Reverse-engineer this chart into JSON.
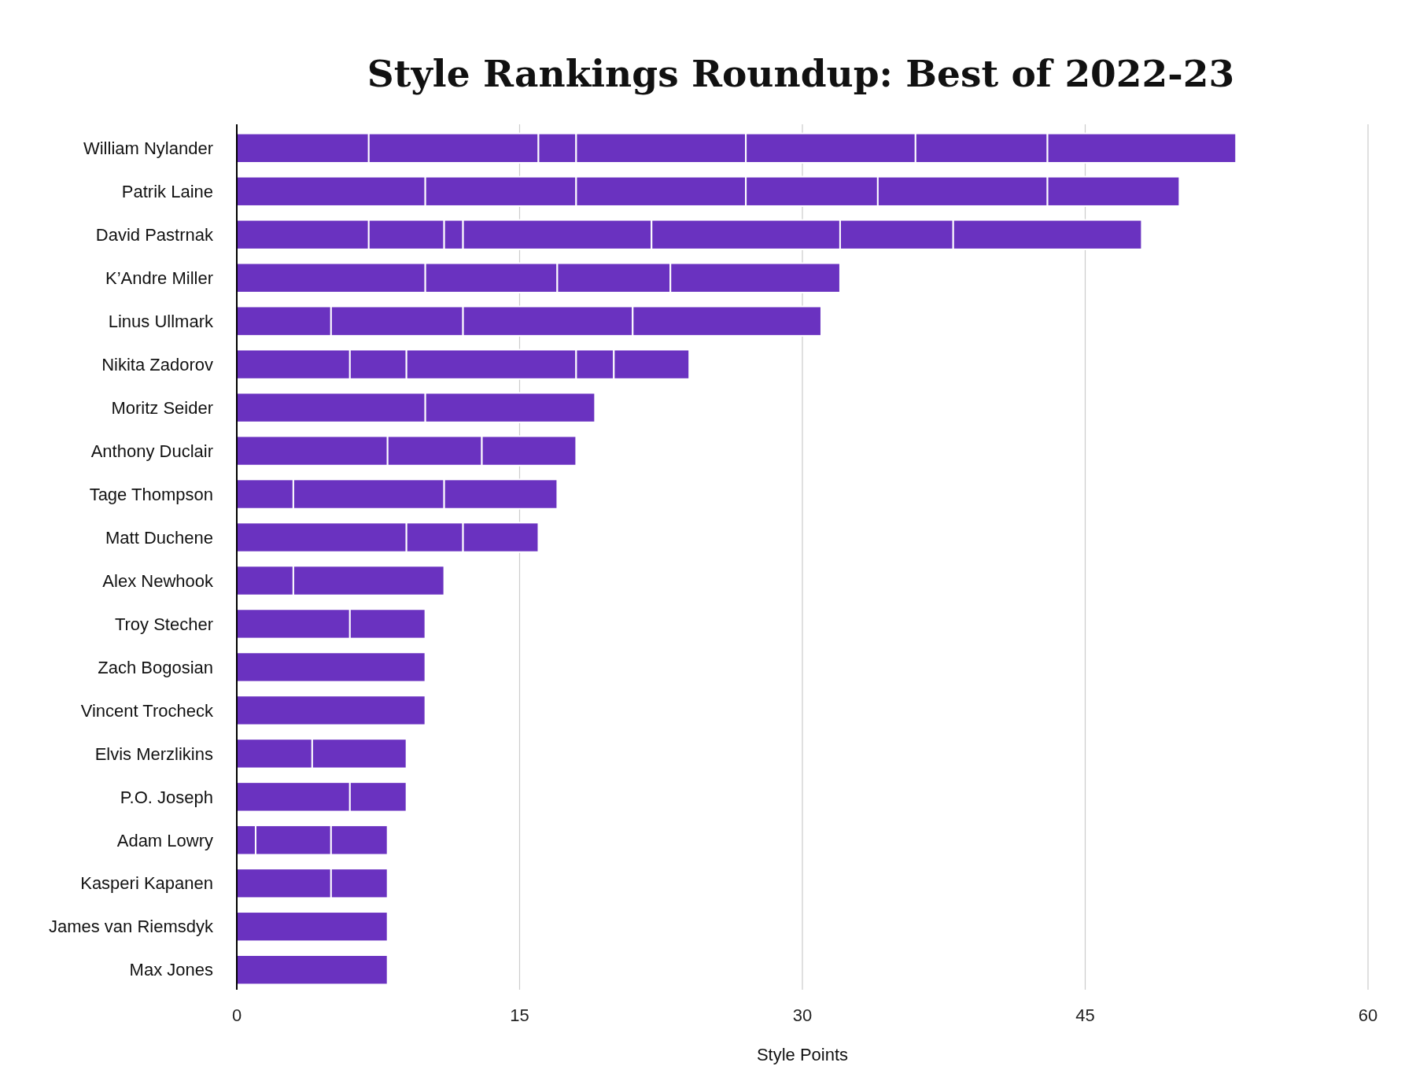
{
  "chart_data": {
    "type": "bar",
    "orientation": "horizontal",
    "stacked": true,
    "title": "Style Rankings Roundup: Best of 2022-23",
    "xlabel": "Style Points",
    "categories": [
      "William Nylander",
      "Patrik Laine",
      "David Pastrnak",
      "K’Andre Miller",
      "Linus Ullmark",
      "Nikita Zadorov",
      "Moritz Seider",
      "Anthony Duclair",
      "Tage Thompson",
      "Matt Duchene",
      "Alex Newhook",
      "Troy Stecher",
      "Zach Bogosian",
      "Vincent Trocheck",
      "Elvis Merzlikins",
      "P.O. Joseph",
      "Adam Lowry",
      "Kasperi Kapanen",
      "James van Riemsdyk",
      "Max Jones"
    ],
    "series": [
      {
        "color": "#6a32c0",
        "values": [
          7,
          10,
          7,
          10,
          5,
          6,
          10,
          8,
          3,
          9,
          3,
          6,
          10,
          10,
          4,
          6,
          1,
          5,
          8,
          8
        ]
      },
      {
        "color": "#6a32c0",
        "values": [
          9,
          8,
          4,
          7,
          7,
          3,
          9,
          5,
          8,
          3,
          8,
          4,
          null,
          null,
          5,
          3,
          4,
          3,
          null,
          null
        ]
      },
      {
        "color": "#6a32c0",
        "values": [
          2,
          9,
          1,
          6,
          9,
          9,
          null,
          5,
          6,
          4,
          null,
          null,
          null,
          null,
          null,
          null,
          3,
          null,
          null,
          null
        ]
      },
      {
        "color": "#6a32c0",
        "values": [
          9,
          7,
          10,
          9,
          10,
          2,
          null,
          null,
          null,
          null,
          null,
          null,
          null,
          null,
          null,
          null,
          null,
          null,
          null,
          null
        ]
      },
      {
        "color": "#6a32c0",
        "values": [
          9,
          9,
          10,
          null,
          null,
          4,
          null,
          null,
          null,
          null,
          null,
          null,
          null,
          null,
          null,
          null,
          null,
          null,
          null,
          null
        ]
      },
      {
        "color": "#6a32c0",
        "values": [
          7,
          7,
          6,
          null,
          null,
          null,
          null,
          null,
          null,
          null,
          null,
          null,
          null,
          null,
          null,
          null,
          null,
          null,
          null,
          null
        ]
      },
      {
        "color": "#6a32c0",
        "values": [
          10,
          null,
          10,
          null,
          null,
          null,
          null,
          null,
          null,
          null,
          null,
          null,
          null,
          null,
          null,
          null,
          null,
          null,
          null,
          null
        ]
      }
    ],
    "xlim": [
      0,
      60
    ],
    "xticks": [
      0,
      15,
      30,
      45,
      60
    ],
    "grid": "x"
  }
}
